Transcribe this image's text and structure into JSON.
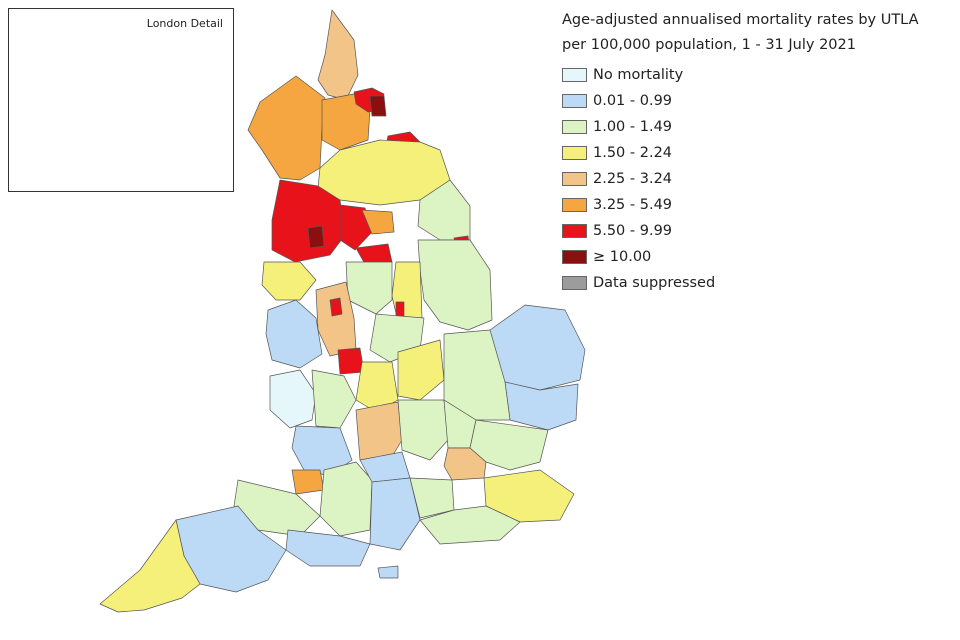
{
  "inset": {
    "title": "London Detail"
  },
  "legend": {
    "title": "Age-adjusted annualised mortality rates by UTLA\nper 100,000 population, 1 - 31 July 2021",
    "items": [
      {
        "label": "No mortality",
        "color": "#e6f7fb"
      },
      {
        "label": "0.01 - 0.99",
        "color": "#bcdaf5"
      },
      {
        "label": "1.00 - 1.49",
        "color": "#dcf3c4"
      },
      {
        "label": "1.50 - 2.24",
        "color": "#f5f07a"
      },
      {
        "label": "2.25 - 3.24",
        "color": "#f3c488"
      },
      {
        "label": "3.25 - 5.49",
        "color": "#f6a640"
      },
      {
        "label": "5.50 - 9.99",
        "color": "#e8131a"
      },
      {
        "label": "≥ 10.00",
        "color": "#8b0f0f"
      },
      {
        "label": "Data suppressed",
        "color": "#9c9c9c"
      }
    ]
  }
}
